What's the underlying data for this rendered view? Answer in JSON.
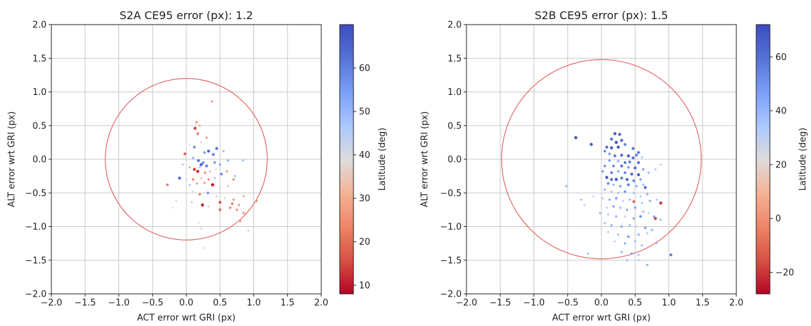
{
  "chart_data": [
    {
      "type": "scatter",
      "title": "S2A CE95 error (px): 1.2",
      "xlabel": "ACT error wrt GRI (px)",
      "ylabel": "ALT error wrt GRI (px)",
      "xlim": [
        -2.0,
        2.0
      ],
      "ylim": [
        -2.0,
        2.0
      ],
      "xticks": [
        "−2.0",
        "−1.5",
        "−1.0",
        "−0.5",
        "0.0",
        "0.5",
        "1.0",
        "1.5",
        "2.0"
      ],
      "yticks": [
        "2.0",
        "1.5",
        "1.0",
        "0.5",
        "0.0",
        "−0.5",
        "−1.0",
        "−1.5",
        "−2.0"
      ],
      "grid": true,
      "ce95_radius": 1.2,
      "circle_color": "#e05a5a",
      "colorbar": {
        "label": "Latitude (deg)",
        "min": 8,
        "max": 70,
        "ticks": [
          "10",
          "20",
          "30",
          "40",
          "50",
          "60"
        ],
        "tick_values": [
          10,
          20,
          30,
          40,
          50,
          60
        ]
      },
      "points": [
        {
          "x": 0.38,
          "y": 0.86,
          "c": 28
        },
        {
          "x": 0.15,
          "y": 0.55,
          "c": 26
        },
        {
          "x": 0.2,
          "y": 0.5,
          "c": 30
        },
        {
          "x": 0.13,
          "y": 0.46,
          "c": 14
        },
        {
          "x": 0.17,
          "y": 0.38,
          "c": 22
        },
        {
          "x": 0.3,
          "y": 0.32,
          "c": 28
        },
        {
          "x": 0.05,
          "y": 0.22,
          "c": 40
        },
        {
          "x": 0.22,
          "y": 0.25,
          "c": 36
        },
        {
          "x": 0.12,
          "y": 0.18,
          "c": 58
        },
        {
          "x": 0.45,
          "y": 0.16,
          "c": 62
        },
        {
          "x": 0.27,
          "y": 0.1,
          "c": 55
        },
        {
          "x": 0.33,
          "y": 0.12,
          "c": 64
        },
        {
          "x": 0.4,
          "y": 0.07,
          "c": 60
        },
        {
          "x": 0.55,
          "y": 0.12,
          "c": 30
        },
        {
          "x": -0.02,
          "y": 0.08,
          "c": 18
        },
        {
          "x": 0.1,
          "y": 0.02,
          "c": 50
        },
        {
          "x": 0.18,
          "y": -0.02,
          "c": 62
        },
        {
          "x": 0.25,
          "y": -0.05,
          "c": 58
        },
        {
          "x": 0.22,
          "y": -0.08,
          "c": 66
        },
        {
          "x": 0.3,
          "y": -0.1,
          "c": 60
        },
        {
          "x": 0.42,
          "y": -0.05,
          "c": 55
        },
        {
          "x": 0.5,
          "y": -0.08,
          "c": 52
        },
        {
          "x": 0.62,
          "y": -0.02,
          "c": 50
        },
        {
          "x": 0.84,
          "y": -0.02,
          "c": 48
        },
        {
          "x": -0.05,
          "y": -0.08,
          "c": 45
        },
        {
          "x": 0.05,
          "y": -0.12,
          "c": 30
        },
        {
          "x": 0.12,
          "y": -0.15,
          "c": 14
        },
        {
          "x": 0.17,
          "y": -0.18,
          "c": 12
        },
        {
          "x": 0.2,
          "y": -0.12,
          "c": 46
        },
        {
          "x": 0.28,
          "y": -0.2,
          "c": 25
        },
        {
          "x": 0.35,
          "y": -0.18,
          "c": 34
        },
        {
          "x": 0.44,
          "y": -0.15,
          "c": 40
        },
        {
          "x": 0.52,
          "y": -0.22,
          "c": 58
        },
        {
          "x": 0.6,
          "y": -0.18,
          "c": 28
        },
        {
          "x": 0.72,
          "y": -0.25,
          "c": 48
        },
        {
          "x": -0.1,
          "y": -0.28,
          "c": 64
        },
        {
          "x": 0.0,
          "y": -0.3,
          "c": 38
        },
        {
          "x": 0.1,
          "y": -0.3,
          "c": 24
        },
        {
          "x": 0.22,
          "y": -0.28,
          "c": 34
        },
        {
          "x": 0.33,
          "y": -0.3,
          "c": 26
        },
        {
          "x": 0.42,
          "y": -0.28,
          "c": 46
        },
        {
          "x": 0.7,
          "y": -0.3,
          "c": 26
        },
        {
          "x": -0.28,
          "y": -0.38,
          "c": 22
        },
        {
          "x": 0.05,
          "y": -0.38,
          "c": 46
        },
        {
          "x": 0.16,
          "y": -0.36,
          "c": 30
        },
        {
          "x": 0.27,
          "y": -0.35,
          "c": 28
        },
        {
          "x": 0.39,
          "y": -0.38,
          "c": 10
        },
        {
          "x": 0.5,
          "y": -0.42,
          "c": 36
        },
        {
          "x": 0.62,
          "y": -0.4,
          "c": 34
        },
        {
          "x": 0.1,
          "y": -0.48,
          "c": 38
        },
        {
          "x": 0.2,
          "y": -0.52,
          "c": 24
        },
        {
          "x": 0.32,
          "y": -0.5,
          "c": 56
        },
        {
          "x": 0.45,
          "y": -0.55,
          "c": 44
        },
        {
          "x": 0.57,
          "y": -0.58,
          "c": 38
        },
        {
          "x": 0.7,
          "y": -0.6,
          "c": 28
        },
        {
          "x": 0.85,
          "y": -0.55,
          "c": 30
        },
        {
          "x": -0.15,
          "y": -0.62,
          "c": 40
        },
        {
          "x": 0.08,
          "y": -0.64,
          "c": 44
        },
        {
          "x": 0.24,
          "y": -0.65,
          "c": 40
        },
        {
          "x": 0.5,
          "y": -0.64,
          "c": 16
        },
        {
          "x": 0.68,
          "y": -0.66,
          "c": 22
        },
        {
          "x": 0.78,
          "y": -0.68,
          "c": 28
        },
        {
          "x": 0.24,
          "y": -0.68,
          "c": 12
        },
        {
          "x": 0.33,
          "y": -0.7,
          "c": 42
        },
        {
          "x": -0.2,
          "y": -0.72,
          "c": 40
        },
        {
          "x": 0.65,
          "y": -0.72,
          "c": 24
        },
        {
          "x": 0.75,
          "y": -0.75,
          "c": 26
        },
        {
          "x": 1.04,
          "y": -0.62,
          "c": 26
        },
        {
          "x": 0.5,
          "y": -0.75,
          "c": 20
        },
        {
          "x": 0.85,
          "y": -0.8,
          "c": 26
        },
        {
          "x": 0.8,
          "y": -0.92,
          "c": 28
        },
        {
          "x": 0.18,
          "y": -0.94,
          "c": 40
        },
        {
          "x": 0.22,
          "y": -1.03,
          "c": 38
        },
        {
          "x": 0.92,
          "y": -1.06,
          "c": 36
        },
        {
          "x": 0.27,
          "y": -1.32,
          "c": 40
        }
      ]
    },
    {
      "type": "scatter",
      "title": "S2B CE95 error (px): 1.5",
      "xlabel": "ACT error wrt GRI (px)",
      "ylabel": "ALT error wrt GRI (px)",
      "xlim": [
        -2.0,
        2.0
      ],
      "ylim": [
        -2.0,
        2.0
      ],
      "xticks": [
        "−2.0",
        "−1.5",
        "−1.0",
        "−0.5",
        "0.0",
        "0.5",
        "1.0",
        "1.5",
        "2.0"
      ],
      "yticks": [
        "2.0",
        "1.5",
        "1.0",
        "0.5",
        "0.0",
        "−0.5",
        "−1.0",
        "−1.5",
        "−2.0"
      ],
      "grid": true,
      "ce95_radius": 1.48,
      "circle_color": "#e05a5a",
      "colorbar": {
        "label": "Latitude (deg)",
        "min": -28,
        "max": 72,
        "ticks": [
          "−20",
          "0",
          "20",
          "40",
          "60"
        ],
        "tick_values": [
          -20,
          0,
          20,
          40,
          60
        ]
      },
      "points": [
        {
          "x": -0.38,
          "y": 0.32,
          "c": 68
        },
        {
          "x": -0.15,
          "y": 0.22,
          "c": 66
        },
        {
          "x": 0.2,
          "y": 0.38,
          "c": 66
        },
        {
          "x": 0.27,
          "y": 0.37,
          "c": 64
        },
        {
          "x": 0.15,
          "y": 0.3,
          "c": 60
        },
        {
          "x": 0.3,
          "y": 0.28,
          "c": 64
        },
        {
          "x": 0.22,
          "y": 0.25,
          "c": 68
        },
        {
          "x": 0.35,
          "y": 0.22,
          "c": 55
        },
        {
          "x": 0.08,
          "y": 0.18,
          "c": 62
        },
        {
          "x": 0.15,
          "y": 0.17,
          "c": 66
        },
        {
          "x": 0.25,
          "y": 0.18,
          "c": 68
        },
        {
          "x": 0.47,
          "y": 0.16,
          "c": 60
        },
        {
          "x": 0.55,
          "y": 0.1,
          "c": 58
        },
        {
          "x": 0.05,
          "y": 0.12,
          "c": 52
        },
        {
          "x": 0.12,
          "y": 0.08,
          "c": 48
        },
        {
          "x": 0.2,
          "y": 0.05,
          "c": 58
        },
        {
          "x": 0.3,
          "y": 0.06,
          "c": 62
        },
        {
          "x": 0.4,
          "y": 0.05,
          "c": 65
        },
        {
          "x": 0.47,
          "y": 0.02,
          "c": 60
        },
        {
          "x": 0.52,
          "y": 0.06,
          "c": 55
        },
        {
          "x": 0.6,
          "y": 0.03,
          "c": 34
        },
        {
          "x": 0.12,
          "y": -0.02,
          "c": 46
        },
        {
          "x": 0.25,
          "y": -0.03,
          "c": 42
        },
        {
          "x": 0.35,
          "y": -0.05,
          "c": 58
        },
        {
          "x": 0.42,
          "y": -0.04,
          "c": 55
        },
        {
          "x": 0.55,
          "y": -0.05,
          "c": 60
        },
        {
          "x": 0.88,
          "y": -0.08,
          "c": 30
        },
        {
          "x": 0.05,
          "y": -0.1,
          "c": 50
        },
        {
          "x": 0.18,
          "y": -0.1,
          "c": 52
        },
        {
          "x": 0.3,
          "y": -0.1,
          "c": 60
        },
        {
          "x": 0.4,
          "y": -0.12,
          "c": 48
        },
        {
          "x": 0.5,
          "y": -0.13,
          "c": 62
        },
        {
          "x": 0.62,
          "y": -0.15,
          "c": 46
        },
        {
          "x": 0.8,
          "y": -0.15,
          "c": 34
        },
        {
          "x": 0.02,
          "y": -0.18,
          "c": 46
        },
        {
          "x": 0.15,
          "y": -0.2,
          "c": 56
        },
        {
          "x": 0.25,
          "y": -0.18,
          "c": 44
        },
        {
          "x": 0.35,
          "y": -0.2,
          "c": 54
        },
        {
          "x": 0.45,
          "y": -0.22,
          "c": 62
        },
        {
          "x": 0.55,
          "y": -0.23,
          "c": 66
        },
        {
          "x": 0.7,
          "y": -0.2,
          "c": 40
        },
        {
          "x": 0.08,
          "y": -0.27,
          "c": 66
        },
        {
          "x": 0.15,
          "y": -0.3,
          "c": 62
        },
        {
          "x": 0.22,
          "y": -0.3,
          "c": 68
        },
        {
          "x": 0.3,
          "y": -0.28,
          "c": 58
        },
        {
          "x": 0.38,
          "y": -0.3,
          "c": 64
        },
        {
          "x": 0.48,
          "y": -0.32,
          "c": 54
        },
        {
          "x": 0.58,
          "y": -0.3,
          "c": 46
        },
        {
          "x": 0.1,
          "y": -0.36,
          "c": 52
        },
        {
          "x": 0.18,
          "y": -0.38,
          "c": 40
        },
        {
          "x": 0.28,
          "y": -0.4,
          "c": 46
        },
        {
          "x": 0.4,
          "y": -0.38,
          "c": 56
        },
        {
          "x": 0.52,
          "y": -0.4,
          "c": 42
        },
        {
          "x": 0.62,
          "y": -0.38,
          "c": 38
        },
        {
          "x": -0.52,
          "y": -0.4,
          "c": 38
        },
        {
          "x": 0.65,
          "y": -0.42,
          "c": 62
        },
        {
          "x": 0.05,
          "y": -0.45,
          "c": 40
        },
        {
          "x": 0.15,
          "y": -0.48,
          "c": 34
        },
        {
          "x": 0.25,
          "y": -0.5,
          "c": 38
        },
        {
          "x": 0.35,
          "y": -0.48,
          "c": 48
        },
        {
          "x": 0.48,
          "y": -0.5,
          "c": 36
        },
        {
          "x": 0.58,
          "y": -0.55,
          "c": 32
        },
        {
          "x": 0.68,
          "y": -0.52,
          "c": 40
        },
        {
          "x": -0.12,
          "y": -0.55,
          "c": 30
        },
        {
          "x": 0.02,
          "y": -0.58,
          "c": 34
        },
        {
          "x": 0.12,
          "y": -0.6,
          "c": 40
        },
        {
          "x": 0.22,
          "y": -0.58,
          "c": 46
        },
        {
          "x": 0.32,
          "y": -0.62,
          "c": 30
        },
        {
          "x": 0.42,
          "y": -0.6,
          "c": 38
        },
        {
          "x": 0.48,
          "y": -0.63,
          "c": -10
        },
        {
          "x": 0.6,
          "y": -0.65,
          "c": 36
        },
        {
          "x": 0.72,
          "y": -0.62,
          "c": 42
        },
        {
          "x": 0.82,
          "y": -0.6,
          "c": 34
        },
        {
          "x": 0.88,
          "y": -0.65,
          "c": -20
        },
        {
          "x": -0.3,
          "y": -0.6,
          "c": 36
        },
        {
          "x": -0.25,
          "y": -0.68,
          "c": 30
        },
        {
          "x": 0.08,
          "y": -0.72,
          "c": 32
        },
        {
          "x": 0.18,
          "y": -0.7,
          "c": 44
        },
        {
          "x": 0.28,
          "y": -0.72,
          "c": 38
        },
        {
          "x": 0.38,
          "y": -0.75,
          "c": 42
        },
        {
          "x": 0.5,
          "y": -0.72,
          "c": 46
        },
        {
          "x": 0.62,
          "y": -0.78,
          "c": 38
        },
        {
          "x": 0.7,
          "y": -0.8,
          "c": 30
        },
        {
          "x": 0.78,
          "y": -0.85,
          "c": 44
        },
        {
          "x": -0.02,
          "y": -0.8,
          "c": 38
        },
        {
          "x": 0.1,
          "y": -0.82,
          "c": 34
        },
        {
          "x": 0.22,
          "y": -0.85,
          "c": 40
        },
        {
          "x": 0.35,
          "y": -0.85,
          "c": 30
        },
        {
          "x": 0.48,
          "y": -0.88,
          "c": 44
        },
        {
          "x": 0.58,
          "y": -0.85,
          "c": 52
        },
        {
          "x": 0.8,
          "y": -0.88,
          "c": -18
        },
        {
          "x": 0.88,
          "y": -0.9,
          "c": 36
        },
        {
          "x": 0.05,
          "y": -0.95,
          "c": 36
        },
        {
          "x": 0.15,
          "y": -0.98,
          "c": 40
        },
        {
          "x": 0.3,
          "y": -1.0,
          "c": 44
        },
        {
          "x": 0.42,
          "y": -0.98,
          "c": 38
        },
        {
          "x": 0.52,
          "y": -1.0,
          "c": 32
        },
        {
          "x": 0.65,
          "y": -1.02,
          "c": 46
        },
        {
          "x": 0.75,
          "y": -1.05,
          "c": 40
        },
        {
          "x": 0.1,
          "y": -1.08,
          "c": 34
        },
        {
          "x": 0.25,
          "y": -1.12,
          "c": 36
        },
        {
          "x": 0.4,
          "y": -1.15,
          "c": 48
        },
        {
          "x": 0.55,
          "y": -1.12,
          "c": 42
        },
        {
          "x": 0.68,
          "y": -1.1,
          "c": 34
        },
        {
          "x": 0.2,
          "y": -1.22,
          "c": 30
        },
        {
          "x": 0.35,
          "y": -1.25,
          "c": 42
        },
        {
          "x": 0.5,
          "y": -1.22,
          "c": 38
        },
        {
          "x": 0.6,
          "y": -1.28,
          "c": 36
        },
        {
          "x": 0.82,
          "y": -1.25,
          "c": 34
        },
        {
          "x": -0.2,
          "y": -1.4,
          "c": 36
        },
        {
          "x": 0.3,
          "y": -1.38,
          "c": 40
        },
        {
          "x": 0.45,
          "y": -1.4,
          "c": 46
        },
        {
          "x": 0.55,
          "y": -1.42,
          "c": 36
        },
        {
          "x": 1.03,
          "y": -1.42,
          "c": 58
        },
        {
          "x": 0.38,
          "y": -1.5,
          "c": 38
        },
        {
          "x": 0.55,
          "y": -1.5,
          "c": 34
        },
        {
          "x": 0.68,
          "y": -1.57,
          "c": 40
        }
      ]
    }
  ]
}
